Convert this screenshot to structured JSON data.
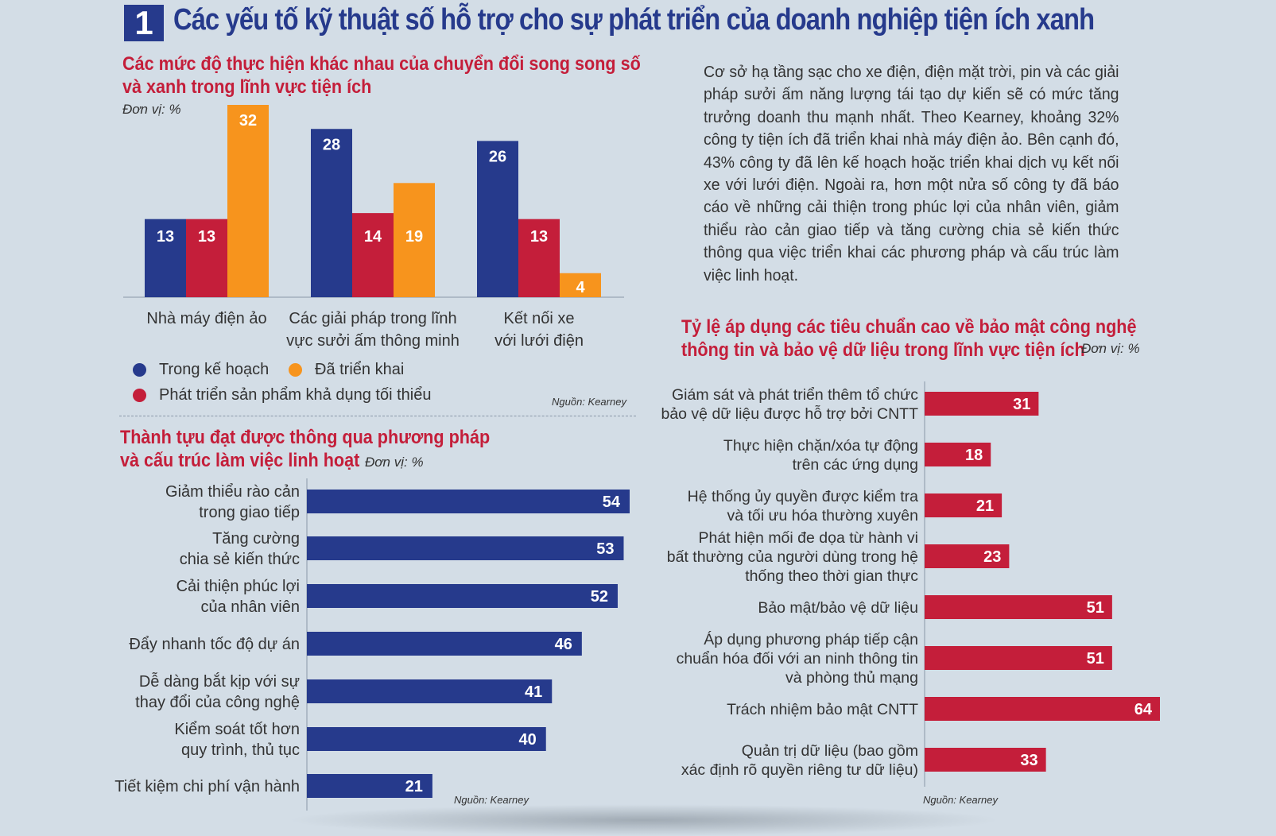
{
  "header": {
    "number": "1",
    "title": "Các yếu tố kỹ thuật số hỗ trợ cho sự phát triển của doanh nghiệp tiện ích xanh"
  },
  "paragraph": "Cơ sở hạ tầng sạc cho xe điện, điện mặt trời, pin và các giải pháp sưởi ấm năng lượng tái tạo dự kiến sẽ có mức tăng trưởng doanh thu mạnh nhất. Theo Kearney, khoảng 32% công ty tiện ích đã triển khai nhà máy điện ảo. Bên cạnh đó, 43% công ty đã lên kế hoạch hoặc triển khai dịch vụ kết nối xe với lưới điện. Ngoài ra, hơn một nửa số công ty đã báo cáo về những cải thiện trong phúc lợi của nhân viên, giảm thiểu rào cản giao tiếp và tăng cường chia sẻ kiến thức thông qua việc triển khai các phương pháp và cấu trúc làm việc linh hoạt.",
  "colors": {
    "blue": "#263a8c",
    "red": "#c41e3a",
    "orange": "#f7941d",
    "title_blue": "#263a8c"
  },
  "chart_data": [
    {
      "type": "bar",
      "title_line1": "Các mức độ thực hiện khác nhau của chuyển đổi song song số",
      "title_line2": "và xanh trong lĩnh vực tiện ích",
      "unit": "Đơn vị: %",
      "source": "Nguồn: Kearney",
      "categories": [
        [
          "Nhà máy điện ảo"
        ],
        [
          "Các giải pháp trong lĩnh",
          "vực sưởi ấm thông minh"
        ],
        [
          "Kết nối xe",
          "với lưới điện"
        ]
      ],
      "series": [
        {
          "name": "Trong kế hoạch",
          "color": "#263a8c",
          "values": [
            13,
            28,
            26
          ]
        },
        {
          "name": "Phát triển sản phẩm khả dụng tối thiểu",
          "color": "#c41e3a",
          "values": [
            13,
            14,
            13
          ]
        },
        {
          "name": "Đã triển khai",
          "color": "#f7941d",
          "values": [
            32,
            19,
            4
          ]
        }
      ],
      "ylim": [
        0,
        32
      ]
    },
    {
      "type": "bar",
      "orientation": "horizontal",
      "title_line1": "Thành tựu đạt được thông qua phương pháp",
      "title_line2": "và cấu trúc làm việc linh hoạt",
      "unit": "Đơn vị: %",
      "source": "Nguồn: Kearney",
      "color": "#263a8c",
      "categories": [
        [
          "Giảm thiểu rào cản",
          "trong giao tiếp"
        ],
        [
          "Tăng cường",
          "chia sẻ kiến thức"
        ],
        [
          "Cải thiện phúc lợi",
          "của nhân viên"
        ],
        [
          "Đẩy nhanh tốc độ dự án"
        ],
        [
          "Dễ dàng bắt kịp với sự",
          "thay đổi của công nghệ"
        ],
        [
          "Kiểm soát tốt hơn",
          "quy trình, thủ tục"
        ],
        [
          "Tiết kiệm chi phí vận hành"
        ]
      ],
      "values": [
        54,
        53,
        52,
        46,
        41,
        40,
        21
      ],
      "xlim": [
        0,
        54
      ]
    },
    {
      "type": "bar",
      "orientation": "horizontal",
      "title_line1": "Tỷ lệ áp dụng các tiêu chuẩn cao về bảo mật công nghệ",
      "title_line2": "thông tin và bảo vệ dữ liệu trong lĩnh vực tiện ích",
      "unit": "Đơn vị: %",
      "source": "Nguồn: Kearney",
      "color": "#c41e3a",
      "categories": [
        [
          "Giám sát và phát triển thêm tổ chức",
          "bảo vệ dữ liệu được hỗ trợ bởi CNTT"
        ],
        [
          "Thực hiện chặn/xóa tự động",
          "trên các ứng dụng"
        ],
        [
          "Hệ thống ủy quyền được kiểm tra",
          "và tối ưu hóa thường xuyên"
        ],
        [
          "Phát hiện mối đe dọa từ hành vi",
          "bất thường của người dùng trong hệ",
          "thống theo thời gian thực"
        ],
        [
          "Bảo mật/bảo vệ dữ liệu"
        ],
        [
          "Áp dụng phương pháp tiếp cận",
          "chuẩn hóa đối với an ninh thông tin",
          "và phòng thủ mạng"
        ],
        [
          "Trách nhiệm bảo mật CNTT"
        ],
        [
          "Quản trị dữ liệu (bao gồm",
          "xác định rõ quyền riêng tư dữ liệu)"
        ]
      ],
      "values": [
        31,
        18,
        21,
        23,
        51,
        51,
        64,
        33
      ],
      "xlim": [
        0,
        64
      ]
    }
  ]
}
